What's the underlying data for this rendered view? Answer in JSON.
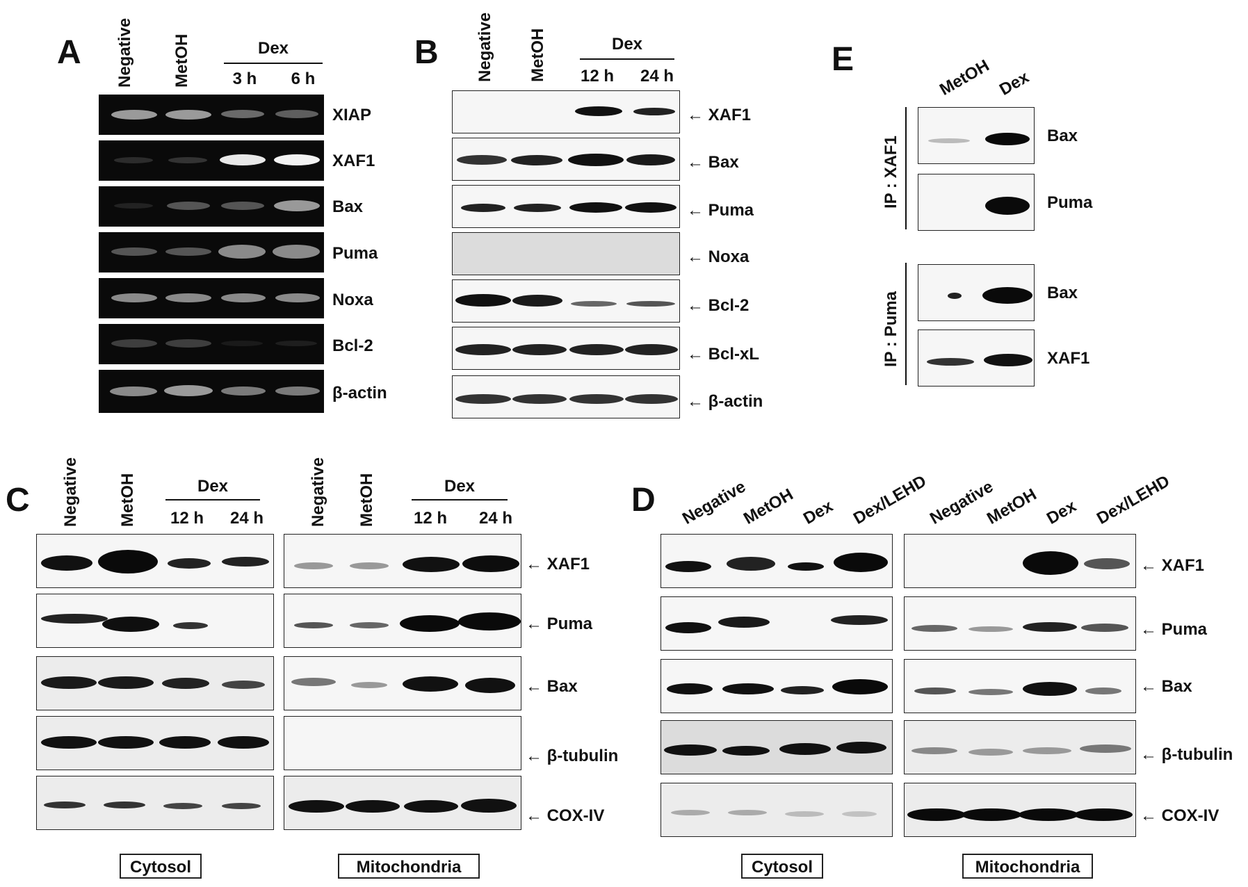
{
  "panel_a": {
    "label": "A",
    "lanes": [
      "Negative",
      "MetOH"
    ],
    "group": "Dex",
    "times": [
      "3 h",
      "6 h"
    ],
    "rows": [
      "XIAP",
      "XAF1",
      "Bax",
      "Puma",
      "Noxa",
      "Bcl-2",
      "β-actin"
    ]
  },
  "panel_b": {
    "label": "B",
    "lanes": [
      "Negative",
      "MetOH"
    ],
    "group": "Dex",
    "times": [
      "12 h",
      "24 h"
    ],
    "rows": [
      "XAF1",
      "Bax",
      "Puma",
      "Noxa",
      "Bcl-2",
      "Bcl-xL",
      "β-actin"
    ]
  },
  "panel_c": {
    "label": "C",
    "cytosol": {
      "lanes": [
        "Negative",
        "MetOH"
      ],
      "group": "Dex",
      "times": [
        "12 h",
        "24 h"
      ],
      "fraction": "Cytosol"
    },
    "mito": {
      "lanes": [
        "Negative",
        "MetOH"
      ],
      "group": "Dex",
      "times": [
        "12 h",
        "24 h"
      ],
      "fraction": "Mitochondria"
    },
    "rows": [
      "XAF1",
      "Puma",
      "Bax",
      "β-tubulin",
      "COX-IV"
    ]
  },
  "panel_d": {
    "label": "D",
    "cytosol": {
      "lanes": [
        "Negative",
        "MetOH",
        "Dex",
        "Dex/LEHD"
      ],
      "fraction": "Cytosol"
    },
    "mito": {
      "lanes": [
        "Negative",
        "MetOH",
        "Dex",
        "Dex/LEHD"
      ],
      "fraction": "Mitochondria"
    },
    "rows": [
      "XAF1",
      "Puma",
      "Bax",
      "β-tubulin",
      "COX-IV"
    ]
  },
  "panel_e": {
    "label": "E",
    "lanes": [
      "MetOH",
      "Dex"
    ],
    "ip1": {
      "label": "IP : XAF1",
      "rows": [
        "Bax",
        "Puma"
      ]
    },
    "ip2": {
      "label": "IP : Puma",
      "rows": [
        "Bax",
        "XAF1"
      ]
    }
  }
}
